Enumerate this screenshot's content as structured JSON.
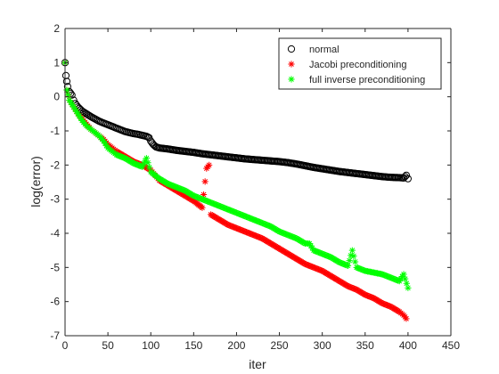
{
  "chart_data": {
    "type": "scatter",
    "title": "",
    "xlabel": "iter",
    "ylabel": "log(error)",
    "xlim": [
      0,
      450
    ],
    "ylim": [
      -7,
      2
    ],
    "xticks": [
      0,
      50,
      100,
      150,
      200,
      250,
      300,
      350,
      400,
      450
    ],
    "yticks": [
      -7,
      -6,
      -5,
      -4,
      -3,
      -2,
      -1,
      0,
      1,
      2
    ],
    "xtick_labels": [
      "0",
      "50",
      "100",
      "150",
      "200",
      "250",
      "300",
      "350",
      "400",
      "450"
    ],
    "ytick_labels": [
      "-7",
      "-6",
      "-5",
      "-4",
      "-3",
      "-2",
      "-1",
      "0",
      "1",
      "2"
    ],
    "grid": false,
    "legend_position": "top-right",
    "series": [
      {
        "name": "normal",
        "marker": "circle",
        "color": "#000000",
        "points": [
          [
            0,
            1.0
          ],
          [
            1,
            0.62
          ],
          [
            2,
            0.45
          ],
          [
            3,
            0.3
          ],
          [
            5,
            0.15
          ],
          [
            8,
            0.05
          ],
          [
            10,
            -0.1
          ],
          [
            12,
            -0.2
          ],
          [
            15,
            -0.3
          ],
          [
            20,
            -0.42
          ],
          [
            25,
            -0.5
          ],
          [
            30,
            -0.58
          ],
          [
            35,
            -0.65
          ],
          [
            40,
            -0.72
          ],
          [
            45,
            -0.77
          ],
          [
            50,
            -0.82
          ],
          [
            55,
            -0.87
          ],
          [
            60,
            -0.92
          ],
          [
            65,
            -0.97
          ],
          [
            70,
            -1.02
          ],
          [
            75,
            -1.05
          ],
          [
            80,
            -1.08
          ],
          [
            85,
            -1.1
          ],
          [
            90,
            -1.13
          ],
          [
            95,
            -1.16
          ],
          [
            98,
            -1.2
          ],
          [
            100,
            -1.3
          ],
          [
            103,
            -1.4
          ],
          [
            106,
            -1.47
          ],
          [
            110,
            -1.5
          ],
          [
            120,
            -1.53
          ],
          [
            130,
            -1.57
          ],
          [
            140,
            -1.6
          ],
          [
            150,
            -1.63
          ],
          [
            160,
            -1.67
          ],
          [
            170,
            -1.7
          ],
          [
            180,
            -1.73
          ],
          [
            190,
            -1.76
          ],
          [
            200,
            -1.79
          ],
          [
            210,
            -1.82
          ],
          [
            220,
            -1.84
          ],
          [
            230,
            -1.86
          ],
          [
            240,
            -1.88
          ],
          [
            250,
            -1.9
          ],
          [
            260,
            -1.93
          ],
          [
            270,
            -1.97
          ],
          [
            280,
            -2.02
          ],
          [
            290,
            -2.07
          ],
          [
            300,
            -2.11
          ],
          [
            310,
            -2.15
          ],
          [
            320,
            -2.19
          ],
          [
            330,
            -2.22
          ],
          [
            340,
            -2.25
          ],
          [
            350,
            -2.28
          ],
          [
            360,
            -2.31
          ],
          [
            370,
            -2.34
          ],
          [
            380,
            -2.36
          ],
          [
            390,
            -2.37
          ],
          [
            395,
            -2.38
          ],
          [
            398,
            -2.3
          ],
          [
            400,
            -2.4
          ]
        ]
      },
      {
        "name": "Jacobi preconditioning",
        "marker": "star",
        "color": "#ff0000",
        "points": [
          [
            0,
            1.0
          ],
          [
            2,
            0.2
          ],
          [
            5,
            -0.1
          ],
          [
            10,
            -0.3
          ],
          [
            15,
            -0.5
          ],
          [
            20,
            -0.65
          ],
          [
            25,
            -0.8
          ],
          [
            30,
            -0.95
          ],
          [
            35,
            -1.05
          ],
          [
            40,
            -1.15
          ],
          [
            45,
            -1.25
          ],
          [
            50,
            -1.4
          ],
          [
            55,
            -1.5
          ],
          [
            60,
            -1.6
          ],
          [
            70,
            -1.75
          ],
          [
            80,
            -1.9
          ],
          [
            90,
            -2.0
          ],
          [
            100,
            -2.15
          ],
          [
            105,
            -2.3
          ],
          [
            110,
            -2.45
          ],
          [
            120,
            -2.6
          ],
          [
            130,
            -2.75
          ],
          [
            140,
            -2.9
          ],
          [
            150,
            -3.05
          ],
          [
            160,
            -3.25
          ],
          [
            165,
            -2.1
          ],
          [
            168,
            -2.0
          ],
          [
            170,
            -3.45
          ],
          [
            180,
            -3.6
          ],
          [
            190,
            -3.75
          ],
          [
            200,
            -3.85
          ],
          [
            210,
            -3.95
          ],
          [
            220,
            -4.05
          ],
          [
            230,
            -4.15
          ],
          [
            240,
            -4.3
          ],
          [
            250,
            -4.45
          ],
          [
            260,
            -4.6
          ],
          [
            270,
            -4.75
          ],
          [
            280,
            -4.9
          ],
          [
            290,
            -5.0
          ],
          [
            300,
            -5.1
          ],
          [
            310,
            -5.25
          ],
          [
            320,
            -5.4
          ],
          [
            330,
            -5.55
          ],
          [
            340,
            -5.65
          ],
          [
            350,
            -5.8
          ],
          [
            360,
            -5.9
          ],
          [
            370,
            -6.05
          ],
          [
            380,
            -6.15
          ],
          [
            390,
            -6.3
          ],
          [
            395,
            -6.4
          ],
          [
            398,
            -6.5
          ]
        ]
      },
      {
        "name": "full inverse preconditioning",
        "marker": "star",
        "color": "#00ff00",
        "points": [
          [
            0,
            1.0
          ],
          [
            2,
            0.2
          ],
          [
            5,
            -0.1
          ],
          [
            10,
            -0.3
          ],
          [
            15,
            -0.5
          ],
          [
            20,
            -0.7
          ],
          [
            25,
            -0.85
          ],
          [
            30,
            -0.95
          ],
          [
            35,
            -1.05
          ],
          [
            40,
            -1.15
          ],
          [
            45,
            -1.3
          ],
          [
            50,
            -1.5
          ],
          [
            55,
            -1.6
          ],
          [
            60,
            -1.7
          ],
          [
            70,
            -1.8
          ],
          [
            80,
            -1.95
          ],
          [
            90,
            -2.05
          ],
          [
            95,
            -1.8
          ],
          [
            100,
            -2.2
          ],
          [
            110,
            -2.4
          ],
          [
            120,
            -2.55
          ],
          [
            130,
            -2.65
          ],
          [
            140,
            -2.75
          ],
          [
            150,
            -2.9
          ],
          [
            160,
            -3.0
          ],
          [
            170,
            -3.1
          ],
          [
            180,
            -3.2
          ],
          [
            190,
            -3.3
          ],
          [
            200,
            -3.4
          ],
          [
            210,
            -3.5
          ],
          [
            220,
            -3.6
          ],
          [
            230,
            -3.7
          ],
          [
            240,
            -3.8
          ],
          [
            250,
            -3.95
          ],
          [
            260,
            -4.05
          ],
          [
            270,
            -4.15
          ],
          [
            280,
            -4.3
          ],
          [
            285,
            -4.3
          ],
          [
            290,
            -4.5
          ],
          [
            300,
            -4.6
          ],
          [
            310,
            -4.7
          ],
          [
            320,
            -4.85
          ],
          [
            330,
            -4.95
          ],
          [
            335,
            -4.5
          ],
          [
            340,
            -5.0
          ],
          [
            350,
            -5.1
          ],
          [
            360,
            -5.15
          ],
          [
            370,
            -5.2
          ],
          [
            380,
            -5.3
          ],
          [
            390,
            -5.4
          ],
          [
            395,
            -5.2
          ],
          [
            400,
            -5.6
          ]
        ]
      }
    ]
  }
}
